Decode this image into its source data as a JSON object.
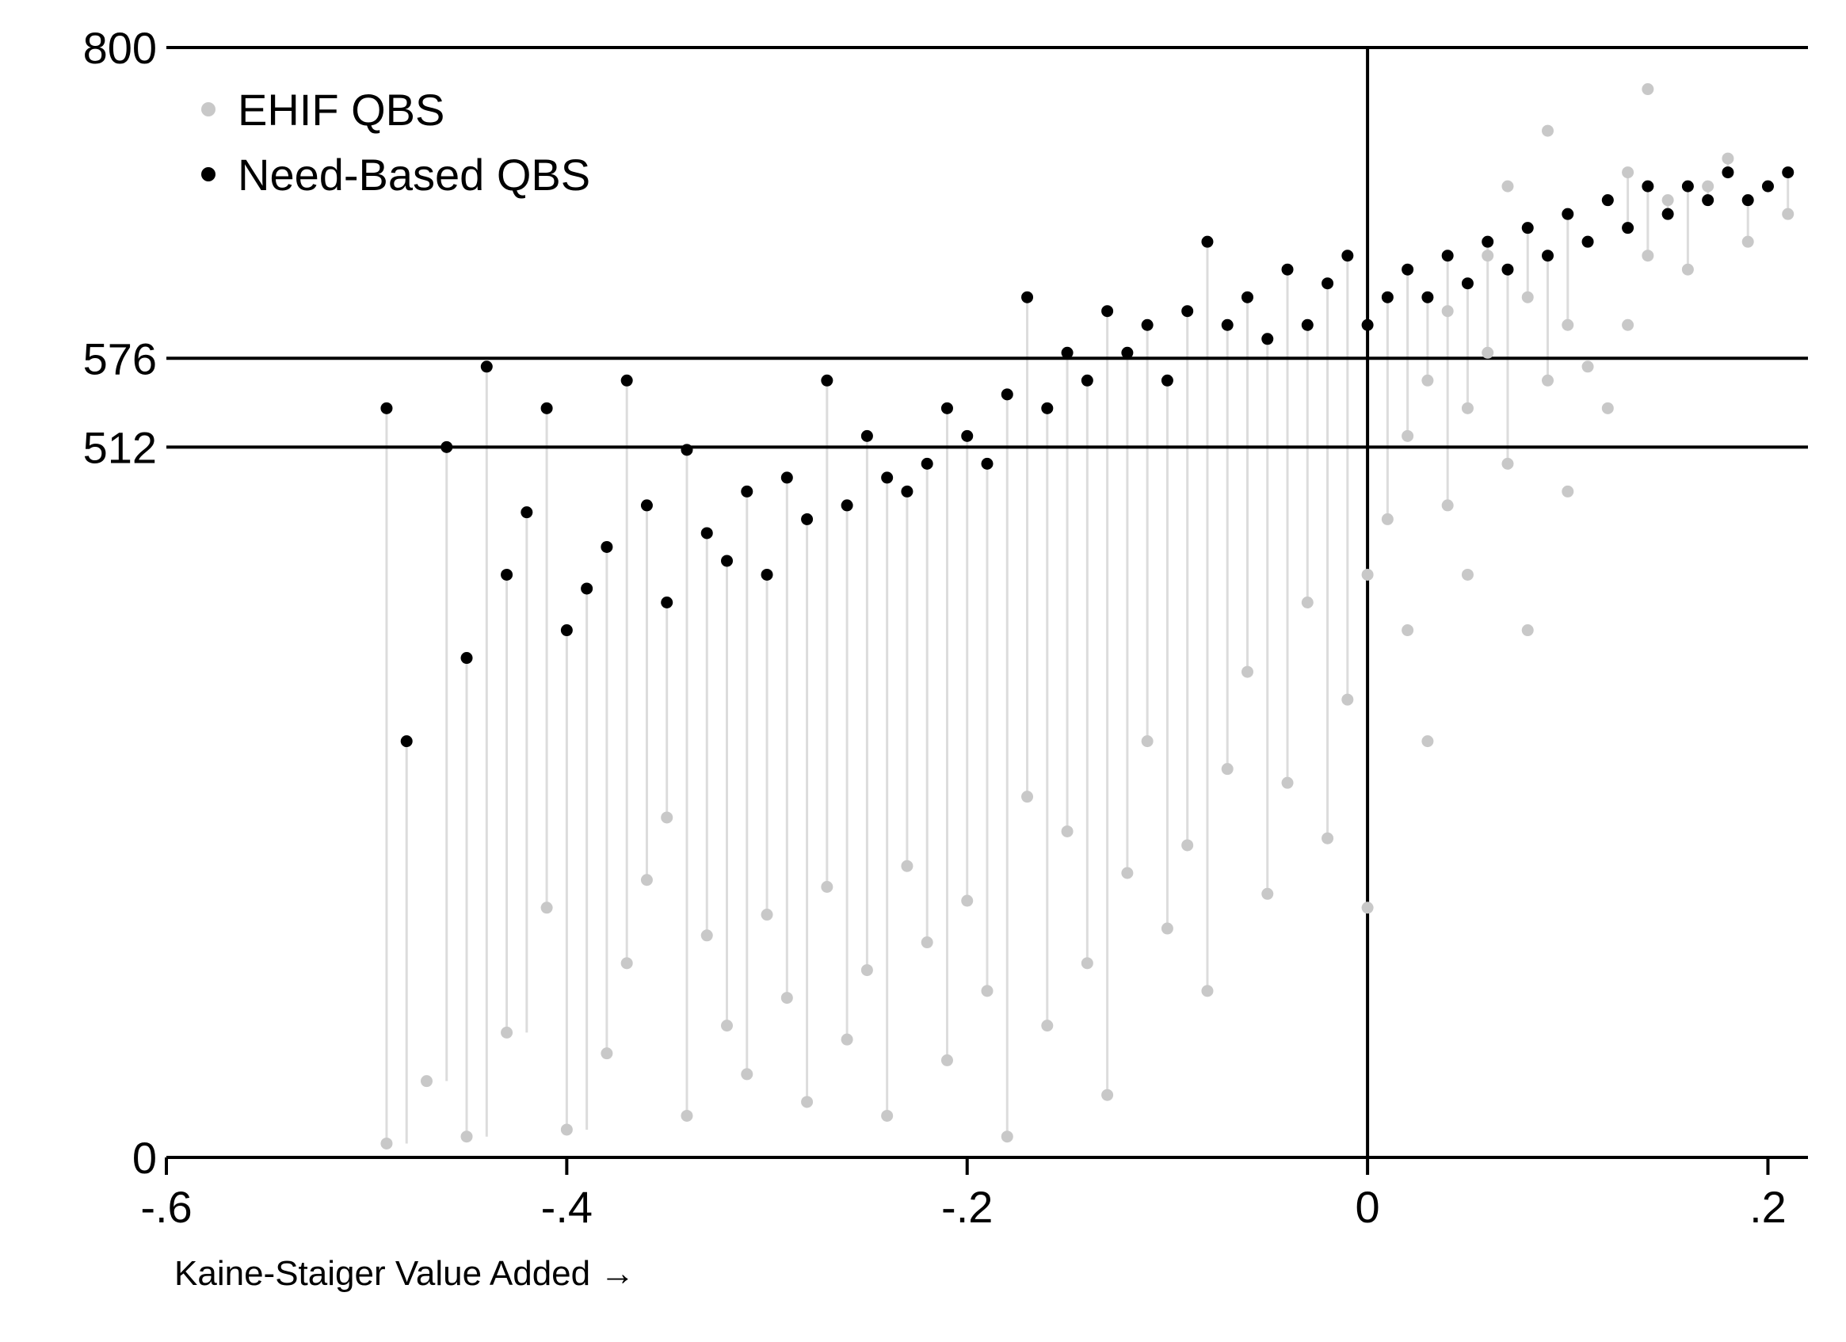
{
  "chart_data": {
    "type": "scatter",
    "title": "",
    "xlabel": "Kaine-Staiger Value Added →",
    "ylabel": "",
    "xlim": [
      -0.6,
      0.22
    ],
    "ylim": [
      0,
      800
    ],
    "x_ticks": [
      -0.6,
      -0.4,
      -0.2,
      0,
      0.2
    ],
    "x_tick_labels": [
      "-.6",
      "-.4",
      "-.2",
      "0",
      ".2"
    ],
    "y_ticks": [
      0,
      512,
      576,
      800
    ],
    "y_tick_labels": [
      "0",
      "512",
      "576",
      "800"
    ],
    "reference_lines": {
      "horizontal": [
        512,
        576,
        800
      ],
      "vertical": [
        0
      ]
    },
    "grid": false,
    "legend_position": "top-left",
    "drop_lines": "light gray vertical segments connect each school's EHIF QBS point to its Need-Based QBS point",
    "colors": {
      "ehif": "#c8c8c8",
      "need_based": "#000000",
      "drop_line": "#dcdcdc"
    },
    "series": [
      {
        "name": "EHIF QBS",
        "points": [
          [
            -0.49,
            10
          ],
          [
            -0.47,
            55
          ],
          [
            -0.45,
            15
          ],
          [
            -0.43,
            90
          ],
          [
            -0.41,
            180
          ],
          [
            -0.4,
            20
          ],
          [
            -0.38,
            75
          ],
          [
            -0.37,
            140
          ],
          [
            -0.36,
            200
          ],
          [
            -0.35,
            245
          ],
          [
            -0.34,
            30
          ],
          [
            -0.33,
            160
          ],
          [
            -0.32,
            95
          ],
          [
            -0.31,
            60
          ],
          [
            -0.3,
            175
          ],
          [
            -0.29,
            115
          ],
          [
            -0.28,
            40
          ],
          [
            -0.27,
            195
          ],
          [
            -0.26,
            85
          ],
          [
            -0.25,
            135
          ],
          [
            -0.24,
            30
          ],
          [
            -0.23,
            210
          ],
          [
            -0.22,
            155
          ],
          [
            -0.21,
            70
          ],
          [
            -0.2,
            185
          ],
          [
            -0.19,
            120
          ],
          [
            -0.18,
            15
          ],
          [
            -0.17,
            260
          ],
          [
            -0.16,
            95
          ],
          [
            -0.15,
            235
          ],
          [
            -0.14,
            140
          ],
          [
            -0.13,
            45
          ],
          [
            -0.12,
            205
          ],
          [
            -0.11,
            300
          ],
          [
            -0.1,
            165
          ],
          [
            -0.09,
            225
          ],
          [
            -0.08,
            120
          ],
          [
            -0.07,
            280
          ],
          [
            -0.06,
            350
          ],
          [
            -0.05,
            190
          ],
          [
            -0.04,
            270
          ],
          [
            -0.03,
            400
          ],
          [
            -0.02,
            230
          ],
          [
            -0.01,
            330
          ],
          [
            0.0,
            420
          ],
          [
            0.0,
            180
          ],
          [
            0.01,
            460
          ],
          [
            0.02,
            520
          ],
          [
            0.02,
            380
          ],
          [
            0.03,
            560
          ],
          [
            0.03,
            300
          ],
          [
            0.04,
            470
          ],
          [
            0.04,
            610
          ],
          [
            0.05,
            540
          ],
          [
            0.05,
            420
          ],
          [
            0.06,
            580
          ],
          [
            0.06,
            650
          ],
          [
            0.07,
            500
          ],
          [
            0.07,
            700
          ],
          [
            0.08,
            620
          ],
          [
            0.08,
            380
          ],
          [
            0.09,
            560
          ],
          [
            0.09,
            740
          ],
          [
            0.1,
            600
          ],
          [
            0.1,
            480
          ],
          [
            0.11,
            660
          ],
          [
            0.11,
            570
          ],
          [
            0.12,
            690
          ],
          [
            0.12,
            540
          ],
          [
            0.13,
            710
          ],
          [
            0.13,
            600
          ],
          [
            0.14,
            650
          ],
          [
            0.14,
            770
          ],
          [
            0.15,
            690
          ],
          [
            0.16,
            640
          ],
          [
            0.17,
            700
          ],
          [
            0.18,
            720
          ],
          [
            0.19,
            660
          ],
          [
            0.2,
            700
          ],
          [
            0.21,
            680
          ]
        ]
      },
      {
        "name": "Need-Based QBS",
        "points": [
          [
            -0.49,
            540
          ],
          [
            -0.48,
            300
          ],
          [
            -0.46,
            512
          ],
          [
            -0.45,
            360
          ],
          [
            -0.44,
            570
          ],
          [
            -0.43,
            420
          ],
          [
            -0.42,
            465
          ],
          [
            -0.41,
            540
          ],
          [
            -0.4,
            380
          ],
          [
            -0.39,
            410
          ],
          [
            -0.38,
            440
          ],
          [
            -0.37,
            560
          ],
          [
            -0.36,
            470
          ],
          [
            -0.35,
            400
          ],
          [
            -0.34,
            510
          ],
          [
            -0.33,
            450
          ],
          [
            -0.32,
            430
          ],
          [
            -0.31,
            480
          ],
          [
            -0.3,
            420
          ],
          [
            -0.29,
            490
          ],
          [
            -0.28,
            460
          ],
          [
            -0.27,
            560
          ],
          [
            -0.26,
            470
          ],
          [
            -0.25,
            520
          ],
          [
            -0.24,
            490
          ],
          [
            -0.23,
            480
          ],
          [
            -0.22,
            500
          ],
          [
            -0.21,
            540
          ],
          [
            -0.2,
            520
          ],
          [
            -0.19,
            500
          ],
          [
            -0.18,
            550
          ],
          [
            -0.17,
            620
          ],
          [
            -0.16,
            540
          ],
          [
            -0.15,
            580
          ],
          [
            -0.14,
            560
          ],
          [
            -0.13,
            610
          ],
          [
            -0.12,
            580
          ],
          [
            -0.11,
            600
          ],
          [
            -0.1,
            560
          ],
          [
            -0.09,
            610
          ],
          [
            -0.08,
            660
          ],
          [
            -0.07,
            600
          ],
          [
            -0.06,
            620
          ],
          [
            -0.05,
            590
          ],
          [
            -0.04,
            640
          ],
          [
            -0.03,
            600
          ],
          [
            -0.02,
            630
          ],
          [
            -0.01,
            650
          ],
          [
            0.0,
            600
          ],
          [
            0.01,
            620
          ],
          [
            0.02,
            640
          ],
          [
            0.03,
            620
          ],
          [
            0.04,
            650
          ],
          [
            0.05,
            630
          ],
          [
            0.06,
            660
          ],
          [
            0.07,
            640
          ],
          [
            0.08,
            670
          ],
          [
            0.09,
            650
          ],
          [
            0.1,
            680
          ],
          [
            0.11,
            660
          ],
          [
            0.12,
            690
          ],
          [
            0.13,
            670
          ],
          [
            0.14,
            700
          ],
          [
            0.15,
            680
          ],
          [
            0.16,
            700
          ],
          [
            0.17,
            690
          ],
          [
            0.18,
            710
          ],
          [
            0.19,
            690
          ],
          [
            0.2,
            700
          ],
          [
            0.21,
            710
          ]
        ]
      }
    ]
  }
}
